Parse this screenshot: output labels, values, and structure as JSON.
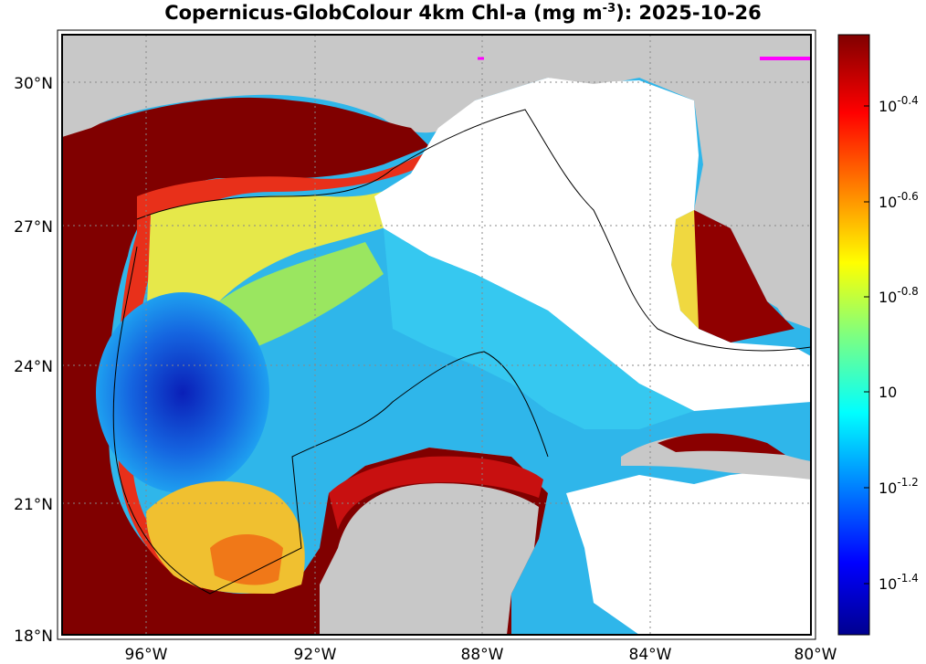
{
  "title": {
    "prefix": "Copernicus-GlobColour 4km Chl-a (mg m",
    "exponent": "-3",
    "suffix": "): 2025-10-26"
  },
  "map": {
    "lat_ticks": [
      "30°N",
      "27°N",
      "24°N",
      "21°N",
      "18°N"
    ],
    "lon_ticks": [
      "96°W",
      "92°W",
      "88°W",
      "84°W",
      "80°W"
    ],
    "colors": {
      "land": "#c8c8c8",
      "no_data": "#ffffff",
      "coast_high": "#7f0000",
      "open_gulf_low": "#0a2fd8"
    }
  },
  "colorbar": {
    "scale": "log10",
    "labels": [
      {
        "base": "10",
        "exp": "-0.4"
      },
      {
        "base": "10",
        "exp": "-0.6"
      },
      {
        "base": "10",
        "exp": "-0.8"
      },
      {
        "base": "10",
        "exp": ""
      },
      {
        "base": "10",
        "exp": "-1.2"
      },
      {
        "base": "10",
        "exp": "-1.4"
      }
    ],
    "colormap": "jet"
  }
}
